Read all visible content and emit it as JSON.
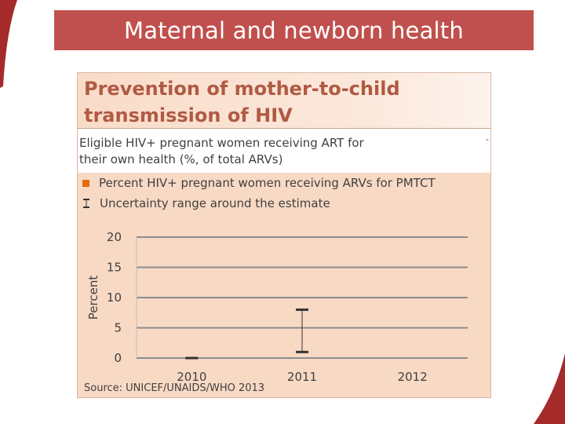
{
  "slide": {
    "title": "Maternal and newborn health"
  },
  "panel": {
    "heading_line1": "Prevention of mother-to-child",
    "heading_line2": "transmission of HIV",
    "note_line1": "Eligible HIV+ pregnant women receiving ART for",
    "note_line2": "their own health (%, of total ARVs)",
    "note_dash": "-",
    "source": "Source: UNICEF/UNAIDS/WHO 2013"
  },
  "colors": {
    "title_bar": "#c0504d",
    "panel_bg": "#f8d9c4",
    "heading_text": "#b05a44",
    "series_marker": "#e46c0a",
    "gridline": "#8c8c8c",
    "error_bar": "#333333"
  },
  "chart_data": {
    "type": "bar",
    "title": "",
    "xlabel": "",
    "ylabel": "Percent",
    "ylim": [
      0,
      20
    ],
    "yticks": [
      0,
      5,
      10,
      15,
      20
    ],
    "grid": true,
    "categories": [
      "2010",
      "2011",
      "2012"
    ],
    "series": [
      {
        "name": "Percent HIV+ pregnant women receiving ARVs for PMTCT",
        "values": [
          null,
          null,
          null
        ]
      }
    ],
    "uncertainty": {
      "name": "Uncertainty range around the estimate",
      "ranges": [
        [
          0,
          0
        ],
        [
          1,
          8
        ],
        null
      ]
    },
    "legend_position": "top"
  }
}
